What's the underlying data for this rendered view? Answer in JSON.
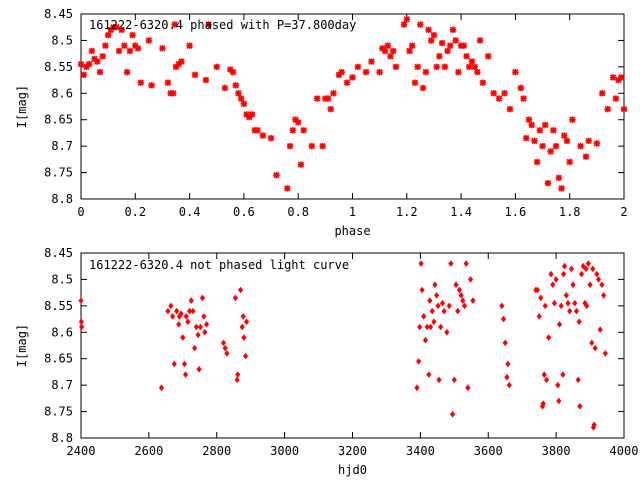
{
  "colors": {
    "series": "#ff0000",
    "frame": "#000000",
    "background": "#ffffff"
  },
  "chart_data": [
    {
      "type": "scatter",
      "title": "161222-6320.4 phased with P=37.800day",
      "xlabel": "phase",
      "ylabel": "I[mag]",
      "xlim": [
        0,
        2
      ],
      "ylim": [
        8.45,
        8.8
      ],
      "y_inverted": true,
      "grid": false,
      "xticks": [
        "0",
        "0.2",
        "0.4",
        "0.6",
        "0.8",
        "1",
        "1.2",
        "1.4",
        "1.6",
        "1.8",
        "2"
      ],
      "yticks": [
        "8.45",
        "8.5",
        "8.55",
        "8.6",
        "8.65",
        "8.7",
        "8.75",
        "8.8"
      ],
      "points": [
        [
          0.0,
          8.545
        ],
        [
          0.01,
          8.565
        ],
        [
          0.02,
          8.55
        ],
        [
          0.03,
          8.545
        ],
        [
          0.04,
          8.52
        ],
        [
          0.05,
          8.535
        ],
        [
          0.06,
          8.54
        ],
        [
          0.07,
          8.56
        ],
        [
          0.08,
          8.53
        ],
        [
          0.09,
          8.51
        ],
        [
          0.1,
          8.49
        ],
        [
          0.11,
          8.48
        ],
        [
          0.12,
          8.475
        ],
        [
          0.13,
          8.475
        ],
        [
          0.14,
          8.52
        ],
        [
          0.15,
          8.48
        ],
        [
          0.16,
          8.51
        ],
        [
          0.17,
          8.56
        ],
        [
          0.18,
          8.52
        ],
        [
          0.19,
          8.49
        ],
        [
          0.2,
          8.51
        ],
        [
          0.21,
          8.515
        ],
        [
          0.22,
          8.58
        ],
        [
          0.25,
          8.5
        ],
        [
          0.26,
          8.585
        ],
        [
          0.3,
          8.515
        ],
        [
          0.32,
          8.58
        ],
        [
          0.33,
          8.6
        ],
        [
          0.34,
          8.6
        ],
        [
          0.345,
          8.47
        ],
        [
          0.35,
          8.55
        ],
        [
          0.36,
          8.545
        ],
        [
          0.37,
          8.54
        ],
        [
          0.4,
          8.51
        ],
        [
          0.42,
          8.565
        ],
        [
          0.46,
          8.575
        ],
        [
          0.47,
          8.47
        ],
        [
          0.5,
          8.55
        ],
        [
          0.53,
          8.59
        ],
        [
          0.55,
          8.555
        ],
        [
          0.56,
          8.56
        ],
        [
          0.57,
          8.585
        ],
        [
          0.58,
          8.6
        ],
        [
          0.59,
          8.61
        ],
        [
          0.6,
          8.62
        ],
        [
          0.61,
          8.64
        ],
        [
          0.62,
          8.645
        ],
        [
          0.63,
          8.64
        ],
        [
          0.64,
          8.67
        ],
        [
          0.65,
          8.67
        ],
        [
          0.67,
          8.68
        ],
        [
          0.7,
          8.685
        ],
        [
          0.72,
          8.755
        ],
        [
          0.76,
          8.78
        ],
        [
          0.77,
          8.7
        ],
        [
          0.78,
          8.67
        ],
        [
          0.79,
          8.65
        ],
        [
          0.8,
          8.655
        ],
        [
          0.81,
          8.735
        ],
        [
          0.82,
          8.67
        ],
        [
          0.85,
          8.7
        ],
        [
          0.87,
          8.61
        ],
        [
          0.89,
          8.7
        ],
        [
          0.9,
          8.61
        ],
        [
          0.91,
          8.61
        ],
        [
          0.92,
          8.63
        ],
        [
          0.93,
          8.6
        ],
        [
          0.95,
          8.565
        ],
        [
          0.96,
          8.56
        ],
        [
          0.98,
          8.58
        ],
        [
          1.0,
          8.57
        ],
        [
          1.02,
          8.55
        ],
        [
          1.05,
          8.56
        ],
        [
          1.07,
          8.54
        ],
        [
          1.1,
          8.56
        ],
        [
          1.11,
          8.515
        ],
        [
          1.12,
          8.52
        ],
        [
          1.13,
          8.51
        ],
        [
          1.14,
          8.53
        ],
        [
          1.15,
          8.52
        ],
        [
          1.16,
          8.55
        ],
        [
          1.19,
          8.47
        ],
        [
          1.2,
          8.46
        ],
        [
          1.21,
          8.52
        ],
        [
          1.22,
          8.51
        ],
        [
          1.23,
          8.58
        ],
        [
          1.24,
          8.55
        ],
        [
          1.25,
          8.47
        ],
        [
          1.26,
          8.59
        ],
        [
          1.27,
          8.56
        ],
        [
          1.28,
          8.48
        ],
        [
          1.29,
          8.5
        ],
        [
          1.3,
          8.49
        ],
        [
          1.31,
          8.55
        ],
        [
          1.32,
          8.53
        ],
        [
          1.33,
          8.505
        ],
        [
          1.34,
          8.55
        ],
        [
          1.35,
          8.52
        ],
        [
          1.36,
          8.51
        ],
        [
          1.37,
          8.48
        ],
        [
          1.38,
          8.5
        ],
        [
          1.39,
          8.56
        ],
        [
          1.4,
          8.51
        ],
        [
          1.41,
          8.51
        ],
        [
          1.42,
          8.53
        ],
        [
          1.43,
          8.55
        ],
        [
          1.44,
          8.54
        ],
        [
          1.45,
          8.55
        ],
        [
          1.46,
          8.56
        ],
        [
          1.47,
          8.5
        ],
        [
          1.48,
          8.58
        ],
        [
          1.5,
          8.53
        ],
        [
          1.52,
          8.6
        ],
        [
          1.54,
          8.61
        ],
        [
          1.56,
          8.6
        ],
        [
          1.58,
          8.63
        ],
        [
          1.6,
          8.56
        ],
        [
          1.62,
          8.59
        ],
        [
          1.63,
          8.61
        ],
        [
          1.64,
          8.685
        ],
        [
          1.65,
          8.65
        ],
        [
          1.66,
          8.66
        ],
        [
          1.67,
          8.69
        ],
        [
          1.68,
          8.73
        ],
        [
          1.69,
          8.67
        ],
        [
          1.7,
          8.7
        ],
        [
          1.71,
          8.66
        ],
        [
          1.72,
          8.77
        ],
        [
          1.73,
          8.71
        ],
        [
          1.74,
          8.67
        ],
        [
          1.75,
          8.7
        ],
        [
          1.76,
          8.76
        ],
        [
          1.77,
          8.78
        ],
        [
          1.78,
          8.68
        ],
        [
          1.79,
          8.69
        ],
        [
          1.8,
          8.73
        ],
        [
          1.81,
          8.65
        ],
        [
          1.84,
          8.7
        ],
        [
          1.86,
          8.72
        ],
        [
          1.87,
          8.69
        ],
        [
          1.9,
          8.695
        ],
        [
          1.92,
          8.6
        ],
        [
          1.94,
          8.63
        ],
        [
          1.96,
          8.57
        ],
        [
          1.97,
          8.61
        ],
        [
          1.98,
          8.575
        ],
        [
          1.99,
          8.57
        ],
        [
          2.0,
          8.63
        ]
      ]
    },
    {
      "type": "scatter",
      "title": "161222-6320.4 not phased light curve",
      "xlabel": "hjd0",
      "ylabel": "I[mag]",
      "xlim": [
        2400,
        4000
      ],
      "ylim": [
        8.45,
        8.8
      ],
      "y_inverted": true,
      "grid": false,
      "xticks": [
        "2400",
        "2600",
        "2800",
        "3000",
        "3200",
        "3400",
        "3600",
        "3800",
        "4000"
      ],
      "yticks": [
        "8.45",
        "8.5",
        "8.55",
        "8.6",
        "8.65",
        "8.7",
        "8.75",
        "8.8"
      ],
      "points": [
        [
          2400,
          8.54
        ],
        [
          2401,
          8.58
        ],
        [
          2402,
          8.59
        ],
        [
          2637,
          8.705
        ],
        [
          2656,
          8.56
        ],
        [
          2665,
          8.55
        ],
        [
          2670,
          8.57
        ],
        [
          2675,
          8.66
        ],
        [
          2682,
          8.56
        ],
        [
          2688,
          8.585
        ],
        [
          2690,
          8.57
        ],
        [
          2695,
          8.565
        ],
        [
          2700,
          8.61
        ],
        [
          2705,
          8.66
        ],
        [
          2708,
          8.68
        ],
        [
          2710,
          8.57
        ],
        [
          2715,
          8.58
        ],
        [
          2720,
          8.56
        ],
        [
          2725,
          8.54
        ],
        [
          2730,
          8.56
        ],
        [
          2735,
          8.63
        ],
        [
          2740,
          8.59
        ],
        [
          2745,
          8.605
        ],
        [
          2748,
          8.67
        ],
        [
          2752,
          8.59
        ],
        [
          2758,
          8.535
        ],
        [
          2762,
          8.57
        ],
        [
          2765,
          8.6
        ],
        [
          2770,
          8.585
        ],
        [
          2820,
          8.62
        ],
        [
          2825,
          8.63
        ],
        [
          2830,
          8.64
        ],
        [
          2855,
          8.535
        ],
        [
          2860,
          8.69
        ],
        [
          2862,
          8.68
        ],
        [
          2870,
          8.52
        ],
        [
          2875,
          8.59
        ],
        [
          2878,
          8.57
        ],
        [
          2880,
          8.61
        ],
        [
          2885,
          8.645
        ],
        [
          2888,
          8.58
        ],
        [
          3390,
          8.705
        ],
        [
          3395,
          8.655
        ],
        [
          3398,
          8.59
        ],
        [
          3402,
          8.47
        ],
        [
          3405,
          8.52
        ],
        [
          3410,
          8.57
        ],
        [
          3415,
          8.615
        ],
        [
          3420,
          8.59
        ],
        [
          3425,
          8.68
        ],
        [
          3428,
          8.54
        ],
        [
          3430,
          8.59
        ],
        [
          3435,
          8.56
        ],
        [
          3440,
          8.58
        ],
        [
          3443,
          8.51
        ],
        [
          3448,
          8.53
        ],
        [
          3452,
          8.55
        ],
        [
          3455,
          8.69
        ],
        [
          3460,
          8.59
        ],
        [
          3465,
          8.545
        ],
        [
          3470,
          8.56
        ],
        [
          3478,
          8.6
        ],
        [
          3485,
          8.55
        ],
        [
          3490,
          8.47
        ],
        [
          3495,
          8.755
        ],
        [
          3500,
          8.69
        ],
        [
          3505,
          8.51
        ],
        [
          3510,
          8.56
        ],
        [
          3515,
          8.52
        ],
        [
          3520,
          8.53
        ],
        [
          3525,
          8.54
        ],
        [
          3530,
          8.55
        ],
        [
          3535,
          8.47
        ],
        [
          3540,
          8.705
        ],
        [
          3548,
          8.5
        ],
        [
          3555,
          8.54
        ],
        [
          3640,
          8.55
        ],
        [
          3645,
          8.575
        ],
        [
          3650,
          8.62
        ],
        [
          3655,
          8.685
        ],
        [
          3658,
          8.66
        ],
        [
          3662,
          8.7
        ],
        [
          3740,
          8.52
        ],
        [
          3745,
          8.52
        ],
        [
          3750,
          8.57
        ],
        [
          3755,
          8.535
        ],
        [
          3760,
          8.74
        ],
        [
          3762,
          8.735
        ],
        [
          3765,
          8.68
        ],
        [
          3768,
          8.55
        ],
        [
          3772,
          8.69
        ],
        [
          3778,
          8.61
        ],
        [
          3785,
          8.49
        ],
        [
          3790,
          8.51
        ],
        [
          3795,
          8.545
        ],
        [
          3800,
          8.5
        ],
        [
          3805,
          8.7
        ],
        [
          3808,
          8.73
        ],
        [
          3810,
          8.585
        ],
        [
          3815,
          8.55
        ],
        [
          3820,
          8.68
        ],
        [
          3822,
          8.49
        ],
        [
          3825,
          8.475
        ],
        [
          3830,
          8.53
        ],
        [
          3835,
          8.545
        ],
        [
          3840,
          8.56
        ],
        [
          3845,
          8.48
        ],
        [
          3850,
          8.51
        ],
        [
          3855,
          8.545
        ],
        [
          3860,
          8.56
        ],
        [
          3865,
          8.69
        ],
        [
          3868,
          8.58
        ],
        [
          3870,
          8.74
        ],
        [
          3875,
          8.49
        ],
        [
          3880,
          8.475
        ],
        [
          3885,
          8.545
        ],
        [
          3888,
          8.48
        ],
        [
          3890,
          8.55
        ],
        [
          3895,
          8.47
        ],
        [
          3900,
          8.51
        ],
        [
          3905,
          8.62
        ],
        [
          3908,
          8.48
        ],
        [
          3910,
          8.78
        ],
        [
          3912,
          8.775
        ],
        [
          3915,
          8.63
        ],
        [
          3920,
          8.49
        ],
        [
          3925,
          8.5
        ],
        [
          3930,
          8.595
        ],
        [
          3935,
          8.51
        ],
        [
          3940,
          8.53
        ],
        [
          3945,
          8.64
        ]
      ]
    }
  ]
}
